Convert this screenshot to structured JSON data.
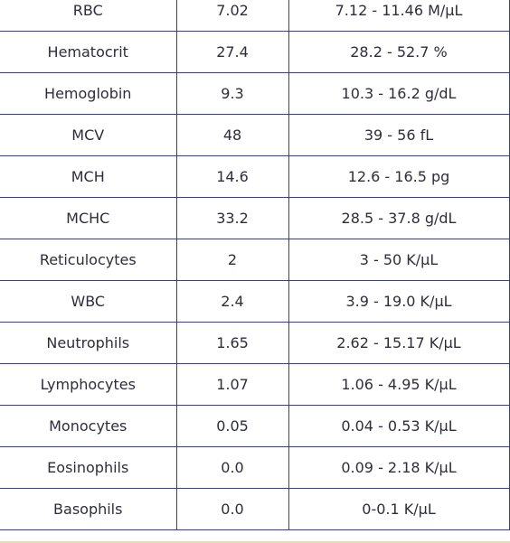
{
  "rows": [
    {
      "test": "RBC",
      "value": "7.02",
      "range": "7.12 - 11.46 M/μL"
    },
    {
      "test": "Hematocrit",
      "value": "27.4",
      "range": "28.2 - 52.7 %"
    },
    {
      "test": "Hemoglobin",
      "value": "9.3",
      "range": "10.3 - 16.2  g/dL"
    },
    {
      "test": "MCV",
      "value": "48",
      "range": "39 - 56 fL"
    },
    {
      "test": "MCH",
      "value": "14.6",
      "range": "12.6 - 16.5 pg"
    },
    {
      "test": "MCHC",
      "value": "33.2",
      "range": "28.5 - 37.8 g/dL"
    },
    {
      "test": "Reticulocytes",
      "value": "2",
      "range": "3 - 50 K/μL"
    },
    {
      "test": "WBC",
      "value": "2.4",
      "range": "3.9 - 19.0 K/μL"
    },
    {
      "test": "Neutrophils",
      "value": "1.65",
      "range": "2.62 - 15.17 K/μL"
    },
    {
      "test": "Lymphocytes",
      "value": "1.07",
      "range": "1.06 - 4.95 K/μL"
    },
    {
      "test": "Monocytes",
      "value": "0.05",
      "range": "0.04 - 0.53 K/μL"
    },
    {
      "test": "Eosinophils",
      "value": "0.0",
      "range": "0.09 - 2.18 K/μL"
    },
    {
      "test": "Basophils",
      "value": "0.0",
      "range": "0-0.1 K/μL"
    }
  ],
  "colors": {
    "border": "#3b3f73",
    "text": "#2e2e3a",
    "bottom_rule": "#e7dfa3"
  }
}
